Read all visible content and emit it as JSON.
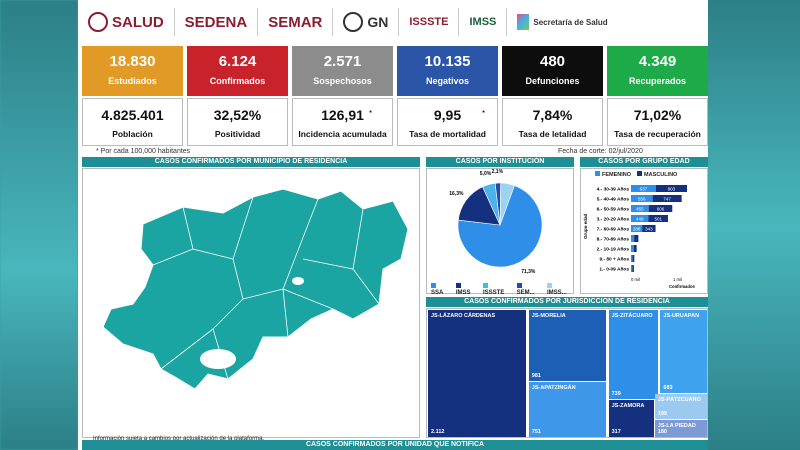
{
  "logos": [
    "SALUD",
    "SEDENA",
    "SEMAR",
    "GN",
    "ISSSTE",
    "IMSS",
    "Secretaría de Salud"
  ],
  "cards": [
    {
      "value": "18.830",
      "label": "Estudiados",
      "color": "#e29a26"
    },
    {
      "value": "6.124",
      "label": "Confirmados",
      "color": "#c8222a"
    },
    {
      "value": "2.571",
      "label": "Sospechosos",
      "color": "#8c8c8c"
    },
    {
      "value": "10.135",
      "label": "Negativos",
      "color": "#2b55a6"
    },
    {
      "value": "480",
      "label": "Defunciones",
      "color": "#0d0d0d"
    },
    {
      "value": "4.349",
      "label": "Recuperados",
      "color": "#1faa4a"
    }
  ],
  "stats": [
    {
      "value": "4.825.401",
      "label": "Población"
    },
    {
      "value": "32,52%",
      "label": "Positividad"
    },
    {
      "value": "126,91",
      "label": "Incidencia acumulada",
      "asterisk": "*"
    },
    {
      "value": "9,95",
      "label": "Tasa de mortalidad",
      "asterisk": "*"
    },
    {
      "value": "7,84%",
      "label": "Tasa de letalidad"
    },
    {
      "value": "71,02%",
      "label": "Tasa de recuperación"
    }
  ],
  "footnote": "* Por cada 100,000 habitantes",
  "cutoff": "Fecha de corte:    02/jul/2020",
  "sections": {
    "municipio": "CASOS CONFIRMADOS POR MUNICIPIO DE RESIDENCIA",
    "institucion": "CASOS POR INSTITUCIÓN",
    "edad": "CASOS POR GRUPO EDAD",
    "jurisdiccion": "CASOS CONFIRMADOS POR JURISDICCIÓN DE RESIDENCIA",
    "unidad": "CASOS CONFIRMADOS POR UNIDAD QUE NOTIFICA"
  },
  "map_note": "Información sujeta a cambios por actualización de la plataforma.",
  "institucion_legend": [
    "SSA",
    "IMSS",
    "ISSSTE",
    "SEM...",
    "IMSS..."
  ],
  "edad_legend": [
    "FEMENINO",
    "MASCULINO"
  ],
  "edad_axis": {
    "ylabel": "Grupo edad",
    "xlabel": "Confirmados",
    "ticks": [
      "0 mil",
      "1 mil"
    ]
  },
  "chart_data": [
    {
      "type": "pie",
      "title": "CASOS POR INSTITUCIÓN",
      "slices": [
        {
          "label": "SSA",
          "value": 71.3,
          "color": "#2f8fe8",
          "text": "71,3%"
        },
        {
          "label": "IMSS",
          "value": 16.3,
          "color": "#14307f",
          "text": "16,3%"
        },
        {
          "label": "ISSSTE",
          "value": 5.0,
          "color": "#4db2ea",
          "text": "5,0%"
        },
        {
          "label": "SEM...",
          "value": 2.1,
          "color": "#1c4fa8",
          "text": "2,1%"
        },
        {
          "label": "IMSS...",
          "value": 5.3,
          "color": "#9cd3f2",
          "text": ""
        }
      ]
    },
    {
      "type": "bar",
      "title": "CASOS POR GRUPO EDAD",
      "categories": [
        "4.- 30-39 Años",
        "5.- 40-49 Años",
        "6.- 50-59 Años",
        "3.- 20-29 Años",
        "7.- 60-69 Años",
        "8.- 70-89 Años",
        "2.- 10-19 Años",
        "9.- 80 + Años",
        "1.- 0-09 Años"
      ],
      "series": [
        {
          "name": "FEMENINO",
          "color": "#2f8fe8",
          "values": [
            637,
            556,
            455,
            449,
            288,
            80,
            70,
            40,
            35
          ]
        },
        {
          "name": "MASCULINO",
          "color": "#14307f",
          "values": [
            803,
            747,
            606,
            501,
            343,
            110,
            75,
            45,
            40
          ]
        }
      ],
      "xlim": [
        0,
        1800
      ]
    },
    {
      "type": "treemap",
      "title": "CASOS CONFIRMADOS POR JURISDICCIÓN DE RESIDENCIA",
      "items": [
        {
          "label": "JS-LÁZARO CÁRDENAS",
          "value": "2.112",
          "color": "#14307f"
        },
        {
          "label": "JS-MORELIA",
          "value": "981",
          "color": "#1c5fb5"
        },
        {
          "label": "JS-ZITÁCUARO",
          "value": "739",
          "color": "#2f8fe8"
        },
        {
          "label": "JS-URUAPAN",
          "value": "683",
          "color": "#3ea2ee"
        },
        {
          "label": "JS-APATZINGÁN",
          "value": "751",
          "color": "#3e97e8"
        },
        {
          "label": "JS-ZAMORA",
          "value": "317",
          "color": "#14307f"
        },
        {
          "label": "JS-PÁTZCUARO",
          "value": "199",
          "color": "#9cc9f0"
        },
        {
          "label": "JS-LA PIEDAD",
          "value": "180",
          "color": "#7e9ad6"
        }
      ]
    }
  ]
}
